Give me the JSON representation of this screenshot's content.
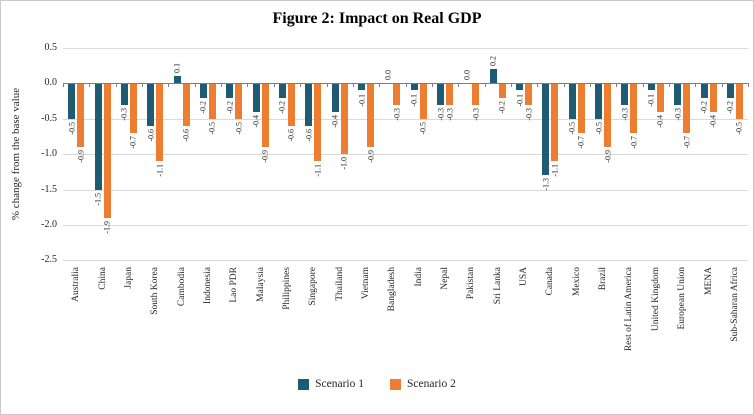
{
  "chart_data": {
    "type": "bar",
    "title": "Figure 2: Impact on Real GDP",
    "xlabel": "",
    "ylabel": "% change from the base value",
    "ylim": [
      -2.5,
      0.5
    ],
    "yticks": [
      0.5,
      0.0,
      -0.5,
      -1.0,
      -1.5,
      -2.0,
      -2.5
    ],
    "grid": true,
    "legend_position": "bottom",
    "label_format": "one_decimal",
    "categories": [
      "Australia",
      "China",
      "Japan",
      "South Korea",
      "Cambodia",
      "Indonesia",
      "Lao PDR",
      "Malaysia",
      "Philippines",
      "Singapore",
      "Thailand",
      "Vietnam",
      "Bangladesh",
      "India",
      "Nepal",
      "Pakistan",
      "Sri Lanka",
      "USA",
      "Canada",
      "Mexico",
      "Brazil",
      "Rest of Latin America",
      "United Kingdom",
      "European Union",
      "MENA",
      "Sub-Saharan Africa"
    ],
    "series": [
      {
        "name": "Scenario 1",
        "color": "#1f5c73",
        "values": [
          -0.5,
          -1.5,
          -0.3,
          -0.6,
          0.1,
          -0.2,
          -0.2,
          -0.4,
          -0.2,
          -0.6,
          -0.4,
          -0.1,
          0.0,
          -0.1,
          -0.3,
          0.0,
          0.2,
          -0.1,
          -1.3,
          -0.5,
          -0.5,
          -0.3,
          -0.1,
          -0.3,
          -0.2,
          -0.2
        ]
      },
      {
        "name": "Scenario 2",
        "color": "#ed7d31",
        "values": [
          -0.9,
          -1.9,
          -0.7,
          -1.1,
          -0.6,
          -0.5,
          -0.5,
          -0.9,
          -0.6,
          -1.1,
          -1.0,
          -0.9,
          -0.3,
          -0.5,
          -0.3,
          -0.3,
          -0.2,
          -0.3,
          -1.1,
          -0.7,
          -0.9,
          -0.7,
          -0.4,
          -0.7,
          -0.4,
          -0.5
        ]
      }
    ],
    "colors": {
      "scenario1": "#1f5c73",
      "scenario2": "#ed7d31",
      "gridline": "#d9d9d9",
      "axis": "#7f7f7f"
    }
  }
}
